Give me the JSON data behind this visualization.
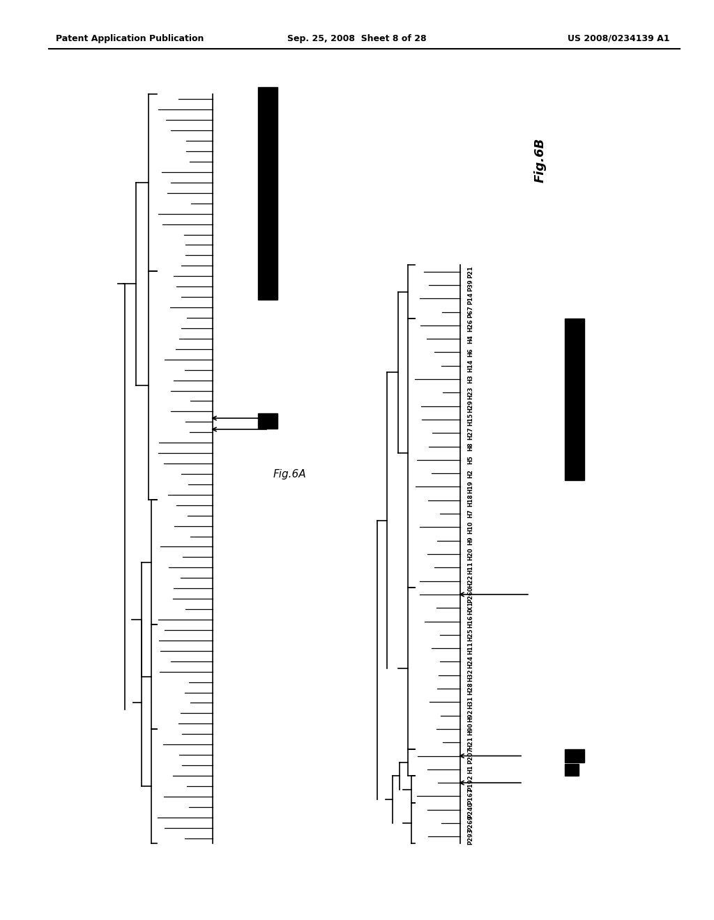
{
  "header_left": "Patent Application Publication",
  "header_mid": "Sep. 25, 2008  Sheet 8 of 28",
  "header_right": "US 2008/0234139 A1",
  "fig6a_label": "Fig.6A",
  "fig6b_label": "Fig.6B",
  "fig6b_samples": [
    "P21",
    "P39",
    "P14",
    "P67",
    "H26",
    "H4",
    "H6",
    "H14",
    "H3",
    "H23",
    "H29",
    "H15",
    "H27",
    "H8",
    "H5",
    "H2",
    "H19",
    "H18",
    "H7",
    "H10",
    "H9",
    "H20",
    "H11",
    "H22",
    "P260",
    "HX1",
    "H16",
    "H25",
    "H11",
    "H24",
    "H32",
    "H28",
    "H31",
    "H92",
    "H90",
    "H21",
    "P207",
    "H1",
    "P192",
    "P167",
    "P240",
    "P269",
    "P293"
  ],
  "background_color": "#ffffff",
  "text_color": "#000000",
  "header_fontsize": 9,
  "label_fontsize": 5.5
}
